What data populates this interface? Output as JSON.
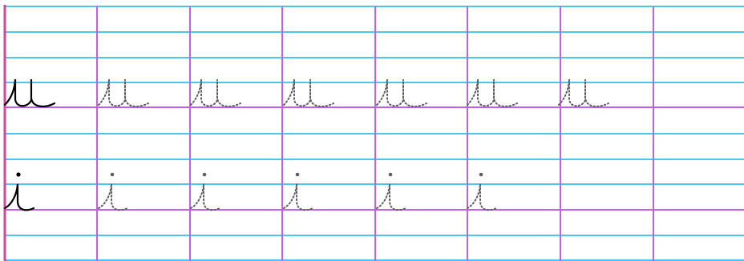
{
  "worksheet": {
    "type": "cursive handwriting practice sheet",
    "rows": [
      {
        "letter": "u",
        "model_count": 1,
        "trace_count": 6
      },
      {
        "letter": "i",
        "model_count": 1,
        "trace_count": 5
      }
    ]
  },
  "colors": {
    "background": "#ffffff",
    "ruled_line": "#4cc6ee",
    "baseline_and_columns": "#c060ea",
    "margin_line": "#e0409a",
    "model_ink": "#000000",
    "trace_ink": "#5e5e5e"
  }
}
